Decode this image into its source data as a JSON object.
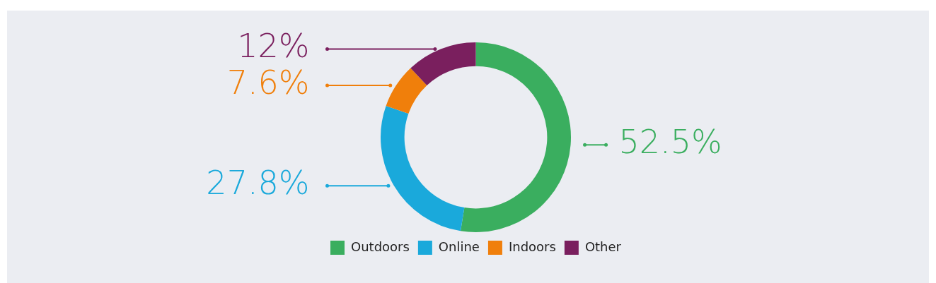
{
  "chart_data": {
    "type": "donut",
    "categories": [
      "Outdoors",
      "Online",
      "Indoors",
      "Other"
    ],
    "values": [
      52.5,
      27.8,
      7.6,
      12
    ],
    "colors": [
      "#3aae5f",
      "#1aa9db",
      "#f07f0b",
      "#7a1f5e"
    ],
    "value_labels": [
      "52.5%",
      "27.8%",
      "7.6%",
      "12%"
    ],
    "legend": "bottom"
  }
}
